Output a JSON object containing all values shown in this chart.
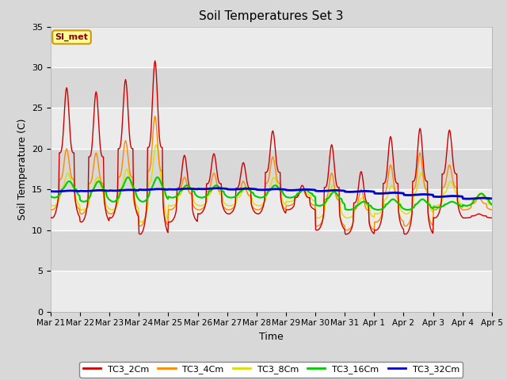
{
  "title": "Soil Temperatures Set 3",
  "xlabel": "Time",
  "ylabel": "Soil Temperature (C)",
  "ylim": [
    0,
    35
  ],
  "yticks": [
    0,
    5,
    10,
    15,
    20,
    25,
    30,
    35
  ],
  "background_color": "#d8d8d8",
  "plot_bg_color": "#d8d8d8",
  "white_band_color": "#e8e8e8",
  "series_colors": {
    "TC3_2Cm": "#cc0000",
    "TC3_4Cm": "#ff8800",
    "TC3_8Cm": "#dddd00",
    "TC3_16Cm": "#00cc00",
    "TC3_32Cm": "#0000cc"
  },
  "annotation_text": "SI_met",
  "annotation_bg": "#ffff99",
  "annotation_border": "#cc9900",
  "x_tick_labels": [
    "Mar 21",
    "Mar 22",
    "Mar 23",
    "Mar 24",
    "Mar 25",
    "Mar 26",
    "Mar 27",
    "Mar 28",
    "Mar 29",
    "Mar 30",
    "Mar 31",
    "Apr 1",
    "Apr 2",
    "Apr 3",
    "Apr 4",
    "Apr 5"
  ],
  "legend_labels": [
    "TC3_2Cm",
    "TC3_4Cm",
    "TC3_8Cm",
    "TC3_16Cm",
    "TC3_32Cm"
  ]
}
